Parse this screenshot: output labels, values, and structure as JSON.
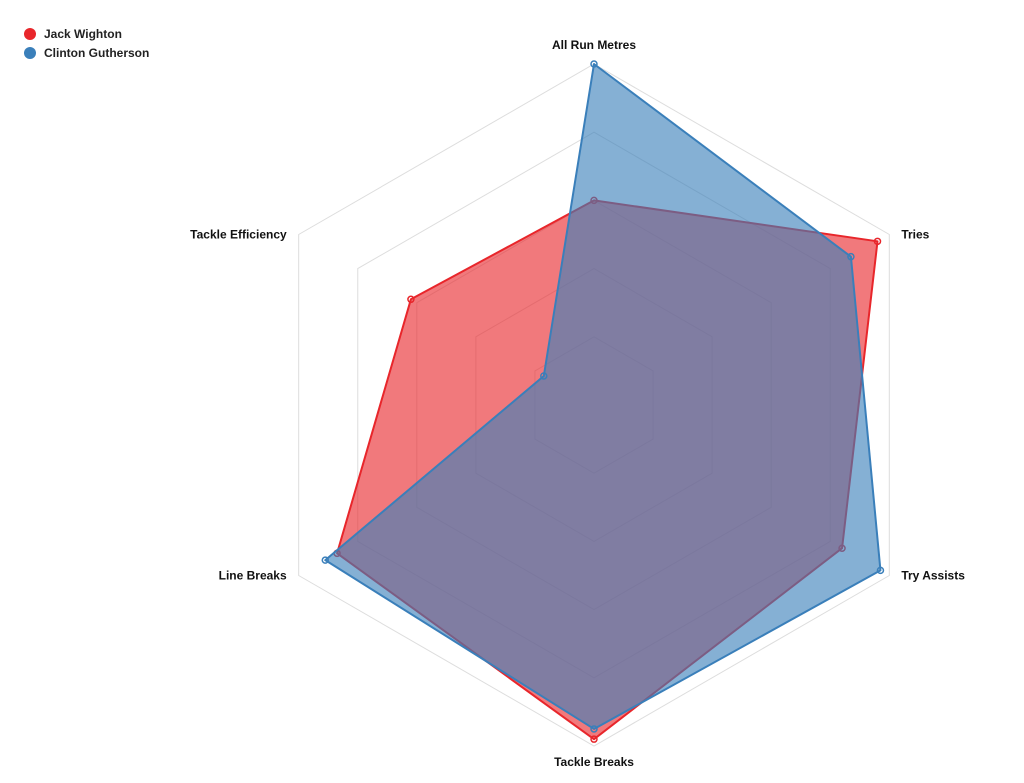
{
  "chart_data": {
    "type": "radar",
    "title": "",
    "axes": [
      "All Run Metres",
      "Tries",
      "Try Assists",
      "Tackle Breaks",
      "Line Breaks",
      "Tackle Efficiency"
    ],
    "range": [
      0,
      1
    ],
    "grid_levels": 5,
    "legend_position": "top-left",
    "series": [
      {
        "name": "Jack Wighton",
        "color": "#e8262b",
        "fill": "rgba(232,38,43,0.62)",
        "values": [
          0.6,
          0.96,
          0.84,
          0.98,
          0.87,
          0.62
        ]
      },
      {
        "name": "Clinton Gutherson",
        "color": "#3a7fba",
        "fill": "rgba(58,127,186,0.62)",
        "values": [
          1.0,
          0.87,
          0.97,
          0.95,
          0.91,
          0.17
        ]
      }
    ]
  }
}
